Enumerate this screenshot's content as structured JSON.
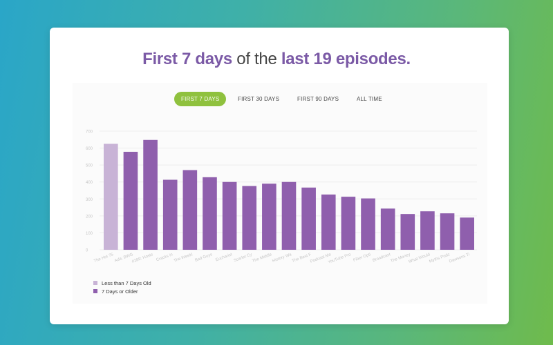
{
  "headline": {
    "part1": "First 7 days",
    "part2": " of the ",
    "part3": "last 19 episodes."
  },
  "tabs": [
    {
      "label": "FIRST 7 DAYS",
      "active": true
    },
    {
      "label": "FIRST 30 DAYS",
      "active": false
    },
    {
      "label": "FIRST 90 DAYS",
      "active": false
    },
    {
      "label": "ALL TIME",
      "active": false
    }
  ],
  "colors": {
    "recent": "#c8b3d6",
    "older": "#8f5fad",
    "tab_active": "#8fc13e",
    "accent_text": "#7b5aa6"
  },
  "legend": [
    {
      "label": "Less than 7 Days Old",
      "color": "#c8b3d6"
    },
    {
      "label": "7 Days or Older",
      "color": "#8f5fad"
    }
  ],
  "chart_data": {
    "type": "bar",
    "title": "",
    "xlabel": "",
    "ylabel": "",
    "ylim": [
      0,
      700
    ],
    "yticks": [
      "0",
      "100",
      "200",
      "300",
      "400",
      "500",
      "600",
      "700"
    ],
    "grid": true,
    "legend_position": "bottom-left",
    "categories": [
      "The Hot 75",
      "Ada: BWG",
      "#289: Hosts",
      "Cracks in",
      "The Weekl",
      "Bad Guys",
      "Eucharist",
      "Scarlet Cy",
      "The Middle",
      "History Wa",
      "The Best F",
      "Podcast Me",
      "YouTube Pro",
      "Fiber Opti",
      "Broadcast",
      "The Money",
      "What Would",
      "Myths Podc",
      "Dawsons Ti"
    ],
    "series": [
      {
        "name": "Less than 7 Days Old",
        "values": [
          625,
          null,
          null,
          null,
          null,
          null,
          null,
          null,
          null,
          null,
          null,
          null,
          null,
          null,
          null,
          null,
          null,
          null,
          null
        ]
      },
      {
        "name": "7 Days or Older",
        "values": [
          null,
          578,
          648,
          413,
          470,
          428,
          400,
          376,
          390,
          400,
          367,
          326,
          313,
          303,
          243,
          211,
          227,
          215,
          190
        ]
      }
    ]
  }
}
